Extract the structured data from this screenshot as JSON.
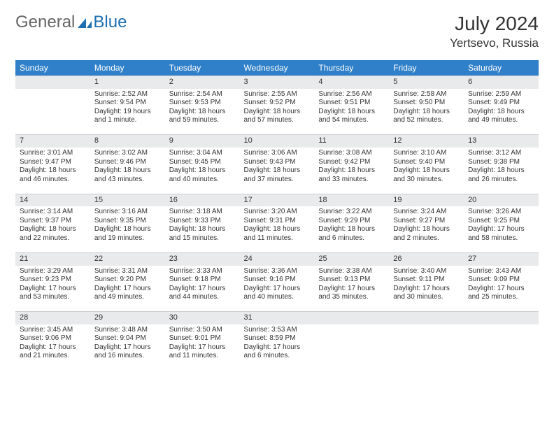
{
  "brand": {
    "general": "General",
    "blue": "Blue",
    "logo_fill": "#1f6fb2"
  },
  "title": {
    "month": "July 2024",
    "location": "Yertsevo, Russia"
  },
  "calendar": {
    "header_bg": "#2f80c9",
    "header_fg": "#ffffff",
    "daynum_bg": "#e9eaeb",
    "border": "#c9cbce",
    "days": [
      "Sunday",
      "Monday",
      "Tuesday",
      "Wednesday",
      "Thursday",
      "Friday",
      "Saturday"
    ],
    "weeks": [
      [
        null,
        {
          "n": "1",
          "sr": "Sunrise: 2:52 AM",
          "ss": "Sunset: 9:54 PM",
          "dl1": "Daylight: 19 hours",
          "dl2": "and 1 minute."
        },
        {
          "n": "2",
          "sr": "Sunrise: 2:54 AM",
          "ss": "Sunset: 9:53 PM",
          "dl1": "Daylight: 18 hours",
          "dl2": "and 59 minutes."
        },
        {
          "n": "3",
          "sr": "Sunrise: 2:55 AM",
          "ss": "Sunset: 9:52 PM",
          "dl1": "Daylight: 18 hours",
          "dl2": "and 57 minutes."
        },
        {
          "n": "4",
          "sr": "Sunrise: 2:56 AM",
          "ss": "Sunset: 9:51 PM",
          "dl1": "Daylight: 18 hours",
          "dl2": "and 54 minutes."
        },
        {
          "n": "5",
          "sr": "Sunrise: 2:58 AM",
          "ss": "Sunset: 9:50 PM",
          "dl1": "Daylight: 18 hours",
          "dl2": "and 52 minutes."
        },
        {
          "n": "6",
          "sr": "Sunrise: 2:59 AM",
          "ss": "Sunset: 9:49 PM",
          "dl1": "Daylight: 18 hours",
          "dl2": "and 49 minutes."
        }
      ],
      [
        {
          "n": "7",
          "sr": "Sunrise: 3:01 AM",
          "ss": "Sunset: 9:47 PM",
          "dl1": "Daylight: 18 hours",
          "dl2": "and 46 minutes."
        },
        {
          "n": "8",
          "sr": "Sunrise: 3:02 AM",
          "ss": "Sunset: 9:46 PM",
          "dl1": "Daylight: 18 hours",
          "dl2": "and 43 minutes."
        },
        {
          "n": "9",
          "sr": "Sunrise: 3:04 AM",
          "ss": "Sunset: 9:45 PM",
          "dl1": "Daylight: 18 hours",
          "dl2": "and 40 minutes."
        },
        {
          "n": "10",
          "sr": "Sunrise: 3:06 AM",
          "ss": "Sunset: 9:43 PM",
          "dl1": "Daylight: 18 hours",
          "dl2": "and 37 minutes."
        },
        {
          "n": "11",
          "sr": "Sunrise: 3:08 AM",
          "ss": "Sunset: 9:42 PM",
          "dl1": "Daylight: 18 hours",
          "dl2": "and 33 minutes."
        },
        {
          "n": "12",
          "sr": "Sunrise: 3:10 AM",
          "ss": "Sunset: 9:40 PM",
          "dl1": "Daylight: 18 hours",
          "dl2": "and 30 minutes."
        },
        {
          "n": "13",
          "sr": "Sunrise: 3:12 AM",
          "ss": "Sunset: 9:38 PM",
          "dl1": "Daylight: 18 hours",
          "dl2": "and 26 minutes."
        }
      ],
      [
        {
          "n": "14",
          "sr": "Sunrise: 3:14 AM",
          "ss": "Sunset: 9:37 PM",
          "dl1": "Daylight: 18 hours",
          "dl2": "and 22 minutes."
        },
        {
          "n": "15",
          "sr": "Sunrise: 3:16 AM",
          "ss": "Sunset: 9:35 PM",
          "dl1": "Daylight: 18 hours",
          "dl2": "and 19 minutes."
        },
        {
          "n": "16",
          "sr": "Sunrise: 3:18 AM",
          "ss": "Sunset: 9:33 PM",
          "dl1": "Daylight: 18 hours",
          "dl2": "and 15 minutes."
        },
        {
          "n": "17",
          "sr": "Sunrise: 3:20 AM",
          "ss": "Sunset: 9:31 PM",
          "dl1": "Daylight: 18 hours",
          "dl2": "and 11 minutes."
        },
        {
          "n": "18",
          "sr": "Sunrise: 3:22 AM",
          "ss": "Sunset: 9:29 PM",
          "dl1": "Daylight: 18 hours",
          "dl2": "and 6 minutes."
        },
        {
          "n": "19",
          "sr": "Sunrise: 3:24 AM",
          "ss": "Sunset: 9:27 PM",
          "dl1": "Daylight: 18 hours",
          "dl2": "and 2 minutes."
        },
        {
          "n": "20",
          "sr": "Sunrise: 3:26 AM",
          "ss": "Sunset: 9:25 PM",
          "dl1": "Daylight: 17 hours",
          "dl2": "and 58 minutes."
        }
      ],
      [
        {
          "n": "21",
          "sr": "Sunrise: 3:29 AM",
          "ss": "Sunset: 9:23 PM",
          "dl1": "Daylight: 17 hours",
          "dl2": "and 53 minutes."
        },
        {
          "n": "22",
          "sr": "Sunrise: 3:31 AM",
          "ss": "Sunset: 9:20 PM",
          "dl1": "Daylight: 17 hours",
          "dl2": "and 49 minutes."
        },
        {
          "n": "23",
          "sr": "Sunrise: 3:33 AM",
          "ss": "Sunset: 9:18 PM",
          "dl1": "Daylight: 17 hours",
          "dl2": "and 44 minutes."
        },
        {
          "n": "24",
          "sr": "Sunrise: 3:36 AM",
          "ss": "Sunset: 9:16 PM",
          "dl1": "Daylight: 17 hours",
          "dl2": "and 40 minutes."
        },
        {
          "n": "25",
          "sr": "Sunrise: 3:38 AM",
          "ss": "Sunset: 9:13 PM",
          "dl1": "Daylight: 17 hours",
          "dl2": "and 35 minutes."
        },
        {
          "n": "26",
          "sr": "Sunrise: 3:40 AM",
          "ss": "Sunset: 9:11 PM",
          "dl1": "Daylight: 17 hours",
          "dl2": "and 30 minutes."
        },
        {
          "n": "27",
          "sr": "Sunrise: 3:43 AM",
          "ss": "Sunset: 9:09 PM",
          "dl1": "Daylight: 17 hours",
          "dl2": "and 25 minutes."
        }
      ],
      [
        {
          "n": "28",
          "sr": "Sunrise: 3:45 AM",
          "ss": "Sunset: 9:06 PM",
          "dl1": "Daylight: 17 hours",
          "dl2": "and 21 minutes."
        },
        {
          "n": "29",
          "sr": "Sunrise: 3:48 AM",
          "ss": "Sunset: 9:04 PM",
          "dl1": "Daylight: 17 hours",
          "dl2": "and 16 minutes."
        },
        {
          "n": "30",
          "sr": "Sunrise: 3:50 AM",
          "ss": "Sunset: 9:01 PM",
          "dl1": "Daylight: 17 hours",
          "dl2": "and 11 minutes."
        },
        {
          "n": "31",
          "sr": "Sunrise: 3:53 AM",
          "ss": "Sunset: 8:59 PM",
          "dl1": "Daylight: 17 hours",
          "dl2": "and 6 minutes."
        },
        null,
        null,
        null
      ]
    ]
  }
}
